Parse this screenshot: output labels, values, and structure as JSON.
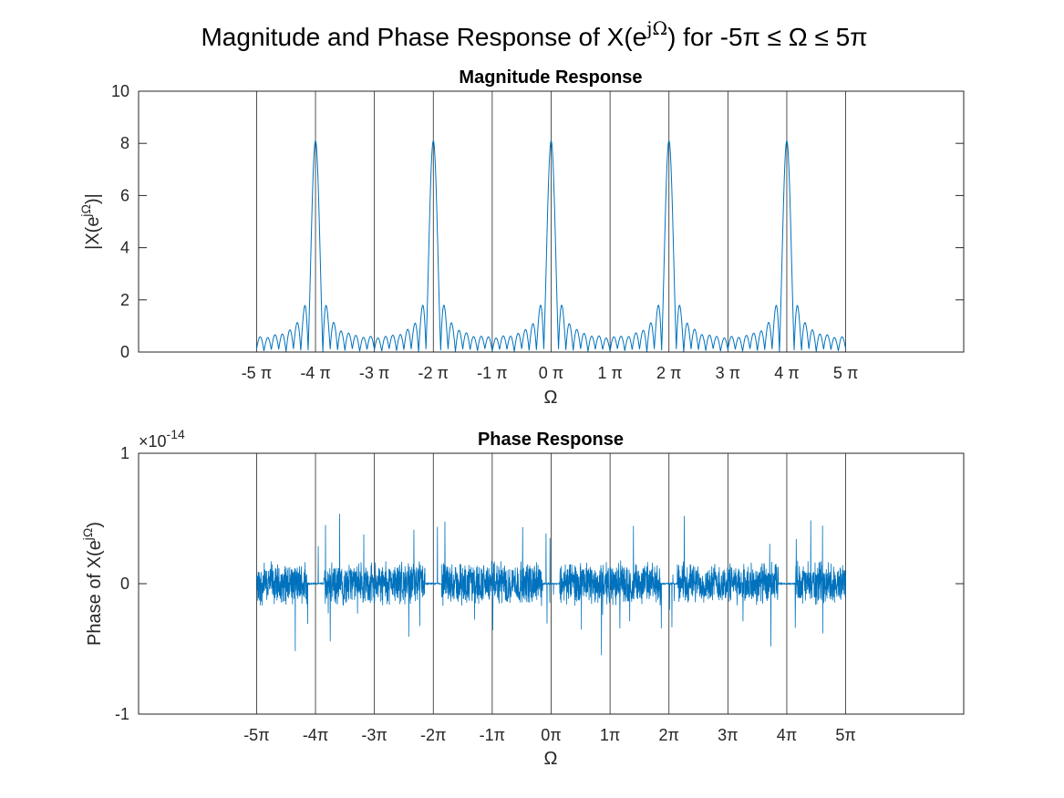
{
  "figure": {
    "suptitle": {
      "prefix": "Magnitude and Phase Response of X(e",
      "sup": "jΩ",
      "suffix": ") for -5π ≤ Ω ≤ 5π"
    }
  },
  "chart_data": [
    {
      "type": "line",
      "title": "Magnitude Response",
      "xlabel": "Ω",
      "ylabel": {
        "prefix": "|X(e",
        "sup": "jΩ",
        "suffix": ")|"
      },
      "xlim": [
        -22.0,
        22.0
      ],
      "ylim": [
        0,
        10
      ],
      "yticks": [
        0,
        2,
        4,
        6,
        8,
        10
      ],
      "ytick_labels": [
        "0",
        "2",
        "4",
        "6",
        "8",
        "10"
      ],
      "xticks": [
        -15.708,
        -12.566,
        -9.425,
        -6.283,
        -3.142,
        0,
        3.142,
        6.283,
        9.425,
        12.566,
        15.708
      ],
      "xtick_labels": [
        "-5 π",
        "-4 π",
        "-3 π",
        "-2 π",
        "-1 π",
        "0 π",
        "1 π",
        "2 π",
        "3 π",
        "4 π",
        "5 π"
      ],
      "grid": "vertical lines at π multiples",
      "series": [
        {
          "color": "#0072BD",
          "x_range": [
            -15.708,
            15.708
          ],
          "peak_value": 8.1,
          "peak_period": 6.283
        }
      ]
    },
    {
      "type": "line",
      "title": "Phase Response",
      "xlabel": "Ω",
      "ylabel": {
        "prefix": "Phase of X(e",
        "sup": "jΩ",
        "suffix": ")"
      },
      "exponent": {
        "base": "×10",
        "power": "-14"
      },
      "xlim": [
        -22.0,
        22.0
      ],
      "ylim": [
        -1,
        1
      ],
      "yticks": [
        -1,
        0,
        1
      ],
      "ytick_labels": [
        "-1",
        "0",
        "1"
      ],
      "xticks": [
        -15.708,
        -12.566,
        -9.425,
        -6.283,
        -3.142,
        0,
        3.142,
        6.283,
        9.425,
        12.566,
        15.708
      ],
      "xtick_labels": [
        "-5π",
        "-4π",
        "-3π",
        "-2π",
        "-1π",
        "0π",
        "1π",
        "2π",
        "3π",
        "4π",
        "5π"
      ],
      "grid": "vertical lines at π multiples",
      "series": [
        {
          "color": "#0072BD",
          "x_range": [
            -15.708,
            15.708
          ],
          "noise_amplitude": 0.7
        }
      ]
    }
  ]
}
